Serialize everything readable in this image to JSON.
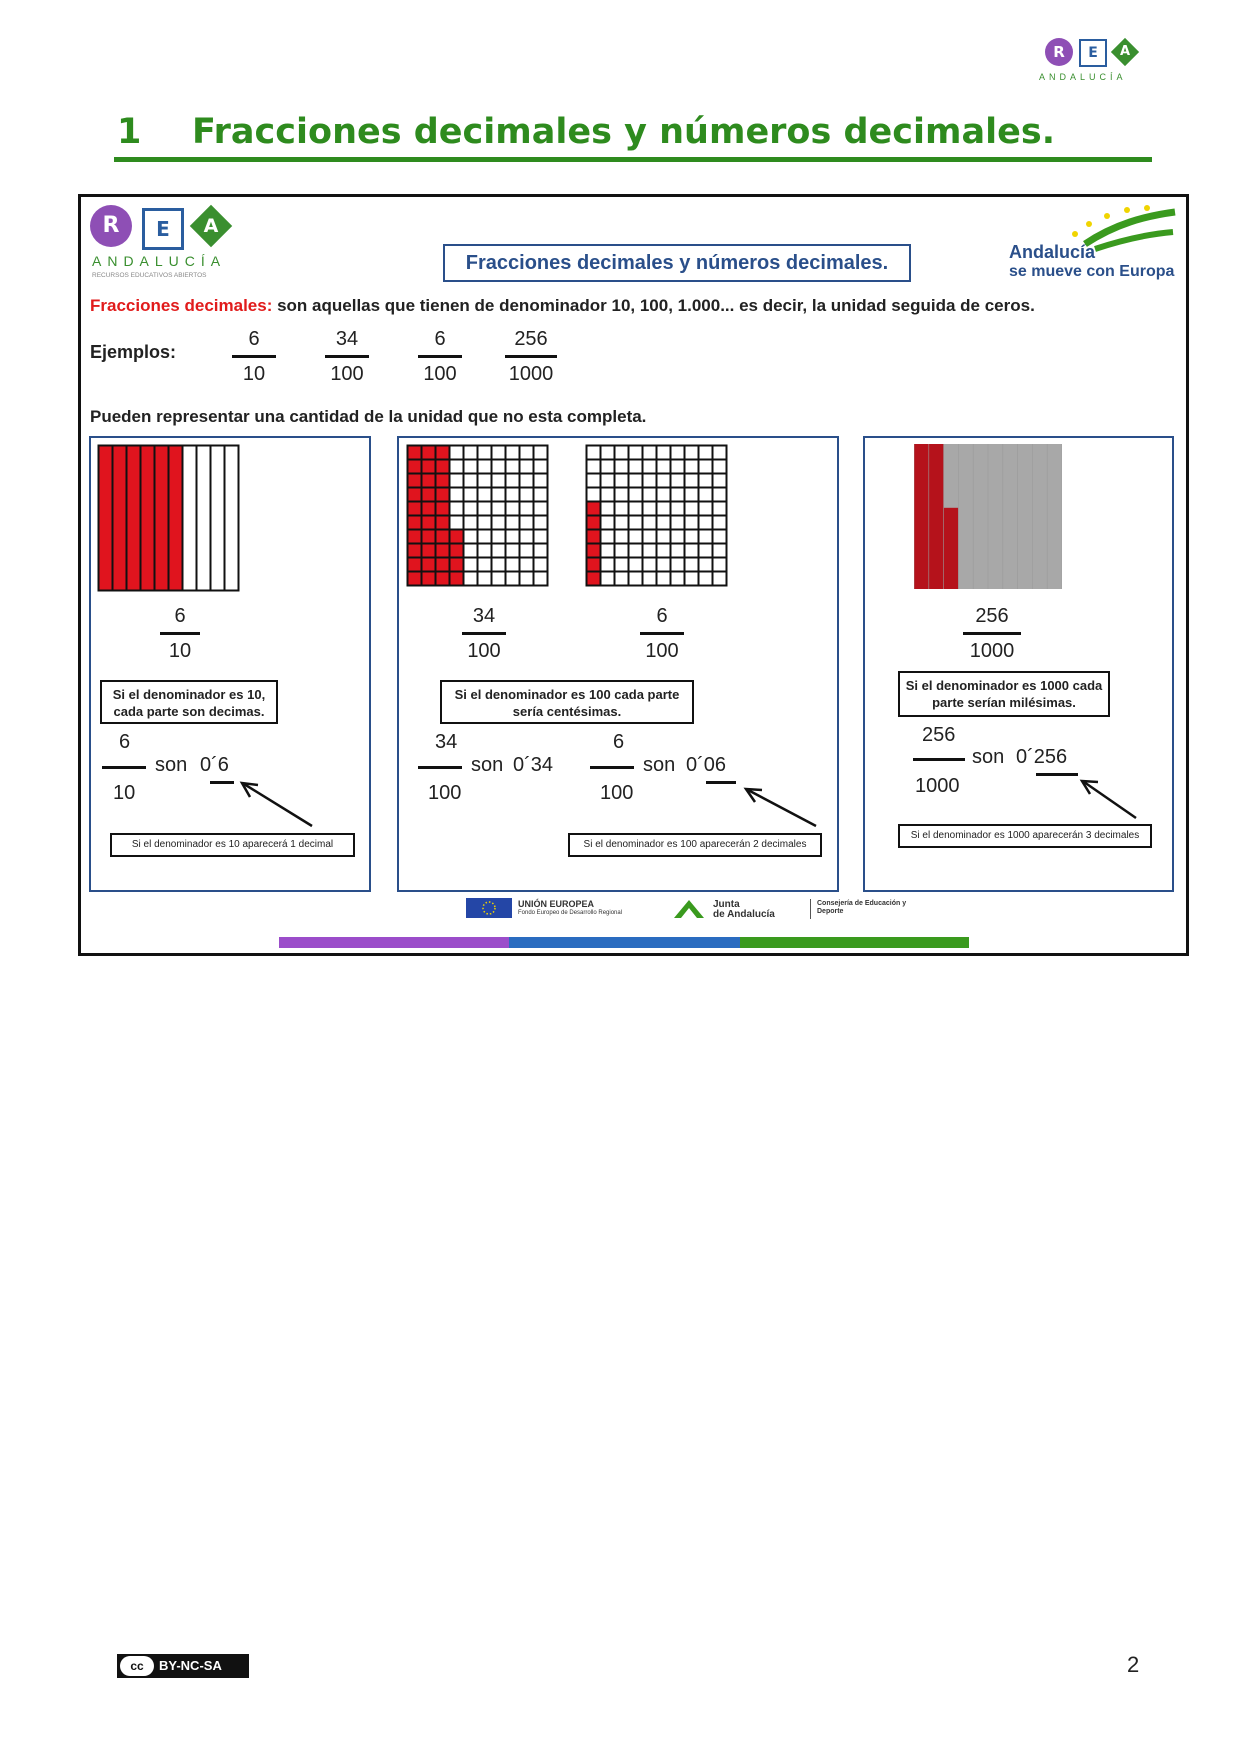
{
  "top_logo": {
    "r": "R",
    "e": "E",
    "a": "A",
    "name": "ANDALUCÍA"
  },
  "heading": {
    "number": "1",
    "title": "Fracciones decimales y números decimales."
  },
  "slide": {
    "logo": {
      "r": "R",
      "e": "E",
      "a": "A",
      "name": "ANDALUCÍA",
      "subtitle": "RECURSOS EDUCATIVOS ABIERTOS"
    },
    "title": "Fracciones decimales y números decimales.",
    "andalucia_logo": {
      "line1": "Andalucía",
      "line2": "se mueve con Europa"
    },
    "definition_term": "Fracciones decimales:",
    "definition_text": " son aquellas que tienen de denominador 10, 100, 1.000... es decir, la unidad seguida de ceros.",
    "examples_label": "Ejemplos:",
    "examples": [
      {
        "num": "6",
        "den": "10"
      },
      {
        "num": "34",
        "den": "100"
      },
      {
        "num": "6",
        "den": "100"
      },
      {
        "num": "256",
        "den": "1000"
      }
    ],
    "represent_text": "Pueden representar una cantidad de la unidad que no esta completa.",
    "panel1": {
      "shaded_fraction": 0.6,
      "frac": {
        "num": "6",
        "den": "10"
      },
      "note": "Si el denominador es 10, cada parte son decimas.",
      "eq_num": "6",
      "eq_den": "10",
      "son": "son",
      "decimal": "0´6",
      "small_note": "Si el denominador es 10 aparecerá 1 decimal"
    },
    "panel2": {
      "shaded_a": 0.34,
      "shaded_b": 0.06,
      "frac_a": {
        "num": "34",
        "den": "100"
      },
      "frac_b": {
        "num": "6",
        "den": "100"
      },
      "note": "Si el denominador es 100 cada parte sería centésimas.",
      "eq_a_num": "34",
      "eq_a_den": "100",
      "son_a": "son",
      "decimal_a": "0´34",
      "eq_b_num": "6",
      "eq_b_den": "100",
      "son_b": "son",
      "decimal_b": "0´06",
      "small_note": "Si el denominador es 100 aparecerán 2 decimales"
    },
    "panel3": {
      "shaded_fraction": 0.256,
      "frac": {
        "num": "256",
        "den": "1000"
      },
      "note": "Si el denominador es 1000 cada parte serían milésimas.",
      "eq_num": "256",
      "eq_den": "1000",
      "son": "son",
      "decimal": "0´256",
      "small_note": "Si el denominador es 1000 aparecerán 3 decimales"
    },
    "footer": {
      "eu_title": "UNIÓN EUROPEA",
      "eu_sub": "Fondo Europeo de Desarrollo Regional",
      "junta_1": "Junta",
      "junta_2": "de Andalucía",
      "consejeria": "Consejería de Educación y Deporte"
    },
    "colors": {
      "purple": "#9b4dca",
      "blue": "#2a6cc0",
      "green": "#3a9a1e",
      "red": "#e0141e"
    }
  },
  "license": "BY-NC-SA",
  "license_logo": "cc",
  "page_number": "2"
}
